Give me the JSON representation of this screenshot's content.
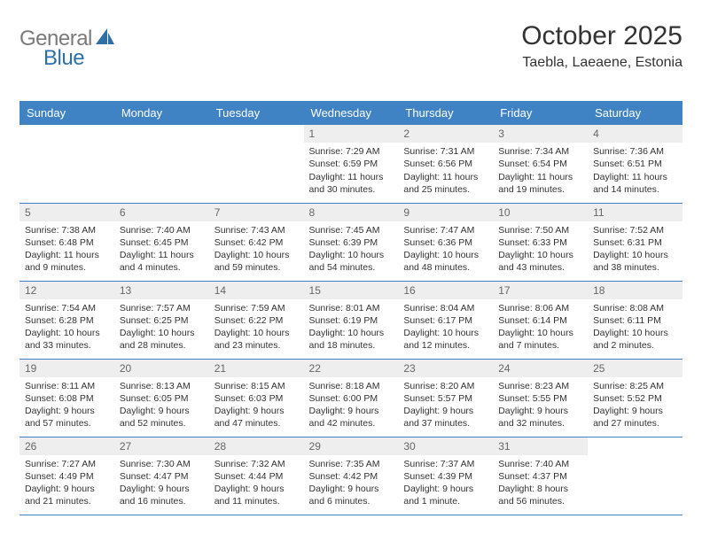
{
  "brand": {
    "text1": "General",
    "text2": "Blue",
    "color1": "#7a7a7a",
    "color2": "#2f6fa9"
  },
  "header": {
    "title": "October 2025",
    "location": "Taebla, Laeaene, Estonia"
  },
  "style": {
    "header_bg": "#3f83c4",
    "header_fg": "#ffffff",
    "border_color": "#3f83c4",
    "daynum_bg": "#eeeeee",
    "daynum_fg": "#666666",
    "text_color": "#333333",
    "body_fontsize": 10.5,
    "title_fontsize": 30,
    "location_fontsize": 16
  },
  "calendar": {
    "day_headers": [
      "Sunday",
      "Monday",
      "Tuesday",
      "Wednesday",
      "Thursday",
      "Friday",
      "Saturday"
    ],
    "first_day_column": 3,
    "days": {
      "1": {
        "sunrise": "7:29 AM",
        "sunset": "6:59 PM",
        "daylight": "11 hours and 30 minutes."
      },
      "2": {
        "sunrise": "7:31 AM",
        "sunset": "6:56 PM",
        "daylight": "11 hours and 25 minutes."
      },
      "3": {
        "sunrise": "7:34 AM",
        "sunset": "6:54 PM",
        "daylight": "11 hours and 19 minutes."
      },
      "4": {
        "sunrise": "7:36 AM",
        "sunset": "6:51 PM",
        "daylight": "11 hours and 14 minutes."
      },
      "5": {
        "sunrise": "7:38 AM",
        "sunset": "6:48 PM",
        "daylight": "11 hours and 9 minutes."
      },
      "6": {
        "sunrise": "7:40 AM",
        "sunset": "6:45 PM",
        "daylight": "11 hours and 4 minutes."
      },
      "7": {
        "sunrise": "7:43 AM",
        "sunset": "6:42 PM",
        "daylight": "10 hours and 59 minutes."
      },
      "8": {
        "sunrise": "7:45 AM",
        "sunset": "6:39 PM",
        "daylight": "10 hours and 54 minutes."
      },
      "9": {
        "sunrise": "7:47 AM",
        "sunset": "6:36 PM",
        "daylight": "10 hours and 48 minutes."
      },
      "10": {
        "sunrise": "7:50 AM",
        "sunset": "6:33 PM",
        "daylight": "10 hours and 43 minutes."
      },
      "11": {
        "sunrise": "7:52 AM",
        "sunset": "6:31 PM",
        "daylight": "10 hours and 38 minutes."
      },
      "12": {
        "sunrise": "7:54 AM",
        "sunset": "6:28 PM",
        "daylight": "10 hours and 33 minutes."
      },
      "13": {
        "sunrise": "7:57 AM",
        "sunset": "6:25 PM",
        "daylight": "10 hours and 28 minutes."
      },
      "14": {
        "sunrise": "7:59 AM",
        "sunset": "6:22 PM",
        "daylight": "10 hours and 23 minutes."
      },
      "15": {
        "sunrise": "8:01 AM",
        "sunset": "6:19 PM",
        "daylight": "10 hours and 18 minutes."
      },
      "16": {
        "sunrise": "8:04 AM",
        "sunset": "6:17 PM",
        "daylight": "10 hours and 12 minutes."
      },
      "17": {
        "sunrise": "8:06 AM",
        "sunset": "6:14 PM",
        "daylight": "10 hours and 7 minutes."
      },
      "18": {
        "sunrise": "8:08 AM",
        "sunset": "6:11 PM",
        "daylight": "10 hours and 2 minutes."
      },
      "19": {
        "sunrise": "8:11 AM",
        "sunset": "6:08 PM",
        "daylight": "9 hours and 57 minutes."
      },
      "20": {
        "sunrise": "8:13 AM",
        "sunset": "6:05 PM",
        "daylight": "9 hours and 52 minutes."
      },
      "21": {
        "sunrise": "8:15 AM",
        "sunset": "6:03 PM",
        "daylight": "9 hours and 47 minutes."
      },
      "22": {
        "sunrise": "8:18 AM",
        "sunset": "6:00 PM",
        "daylight": "9 hours and 42 minutes."
      },
      "23": {
        "sunrise": "8:20 AM",
        "sunset": "5:57 PM",
        "daylight": "9 hours and 37 minutes."
      },
      "24": {
        "sunrise": "8:23 AM",
        "sunset": "5:55 PM",
        "daylight": "9 hours and 32 minutes."
      },
      "25": {
        "sunrise": "8:25 AM",
        "sunset": "5:52 PM",
        "daylight": "9 hours and 27 minutes."
      },
      "26": {
        "sunrise": "7:27 AM",
        "sunset": "4:49 PM",
        "daylight": "9 hours and 21 minutes."
      },
      "27": {
        "sunrise": "7:30 AM",
        "sunset": "4:47 PM",
        "daylight": "9 hours and 16 minutes."
      },
      "28": {
        "sunrise": "7:32 AM",
        "sunset": "4:44 PM",
        "daylight": "9 hours and 11 minutes."
      },
      "29": {
        "sunrise": "7:35 AM",
        "sunset": "4:42 PM",
        "daylight": "9 hours and 6 minutes."
      },
      "30": {
        "sunrise": "7:37 AM",
        "sunset": "4:39 PM",
        "daylight": "9 hours and 1 minute."
      },
      "31": {
        "sunrise": "7:40 AM",
        "sunset": "4:37 PM",
        "daylight": "8 hours and 56 minutes."
      }
    },
    "num_days": 31,
    "labels": {
      "sunrise_prefix": "Sunrise: ",
      "sunset_prefix": "Sunset: ",
      "daylight_prefix": "Daylight: "
    }
  }
}
